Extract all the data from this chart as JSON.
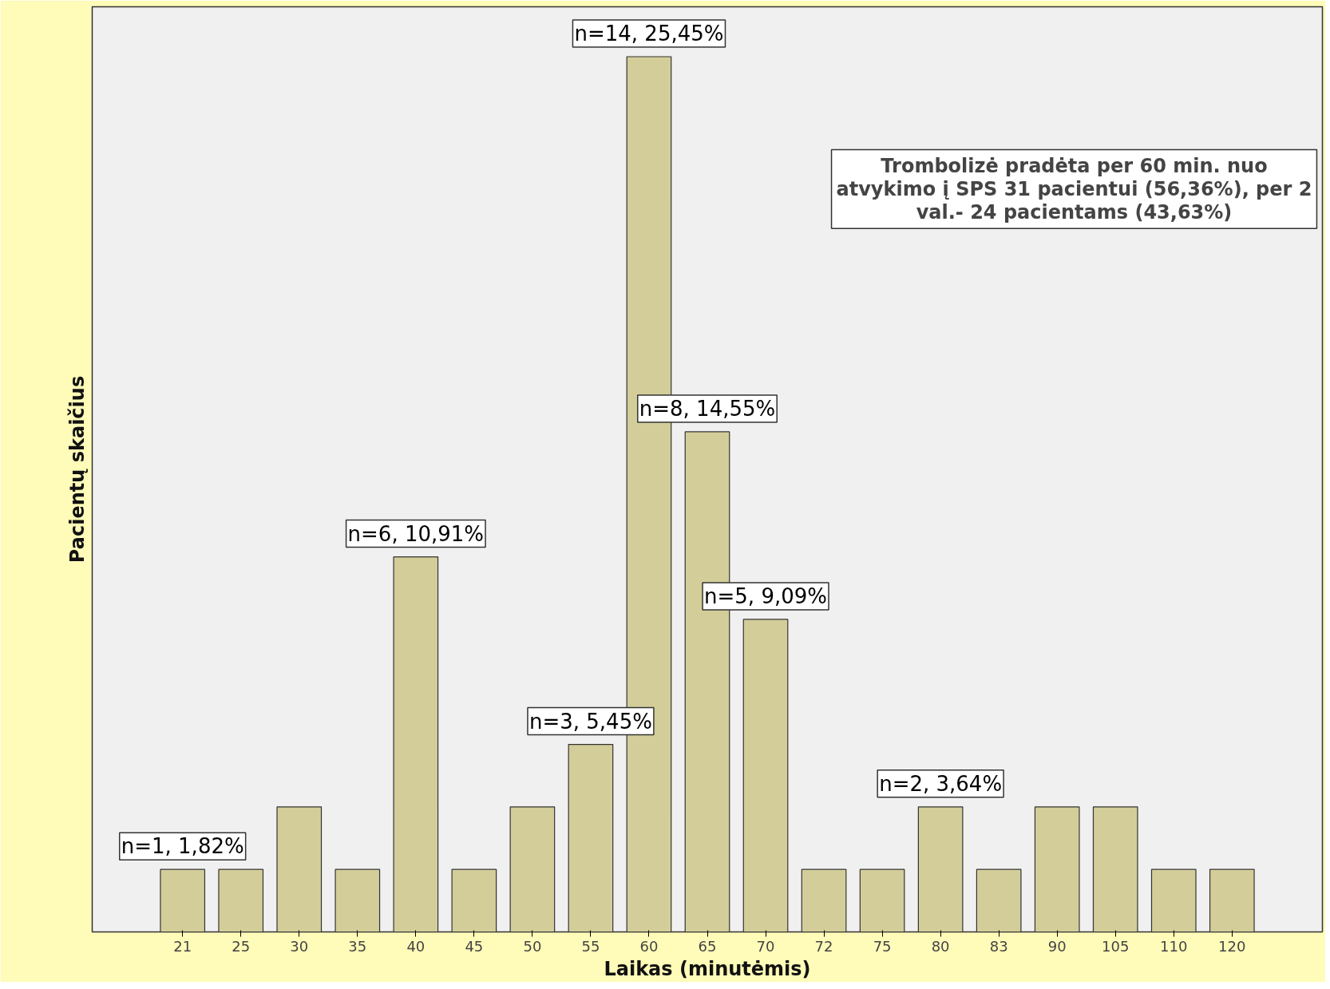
{
  "chart_data": {
    "type": "bar",
    "xlabel": "Laikas (minutėmis)",
    "ylabel": "Pacientų skaičius",
    "categories": [
      "21",
      "25",
      "30",
      "35",
      "40",
      "45",
      "50",
      "55",
      "60",
      "65",
      "70",
      "72",
      "75",
      "80",
      "83",
      "90",
      "105",
      "110",
      "120"
    ],
    "values": [
      1,
      1,
      2,
      1,
      6,
      1,
      2,
      3,
      14,
      8,
      5,
      1,
      1,
      2,
      1,
      2,
      2,
      1,
      1
    ],
    "value_labels": [
      "n=1, 1,82%",
      null,
      null,
      null,
      "n=6, 10,91%",
      null,
      null,
      "n=3, 5,45%",
      "n=14, 25,45%",
      "n=8, 14,55%",
      "n=5, 9,09%",
      null,
      null,
      "n=2, 3,64%",
      null,
      null,
      null,
      null,
      null
    ],
    "color": "#d3ce99",
    "tick_labels": "x",
    "grid": false,
    "annotations": [
      "Trombolizė pradėta per 60 min. nuo\natvykimo į SPS 31 pacientui (56,36%), per 2\nval.- 24 pacientams (43,63%)"
    ]
  }
}
